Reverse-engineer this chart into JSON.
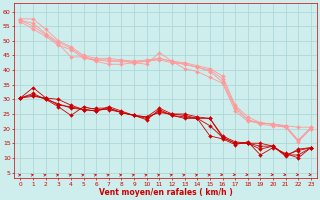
{
  "background_color": "#ceeeed",
  "grid_color": "#aad4d4",
  "line_color_dark": "#cc0000",
  "line_color_light": "#ff9999",
  "xlabel": "Vent moyen/en rafales ( km/h )",
  "xlabel_color": "#cc0000",
  "tick_color": "#cc0000",
  "x_ticks": [
    0,
    1,
    2,
    3,
    4,
    5,
    6,
    7,
    8,
    9,
    10,
    11,
    12,
    13,
    14,
    15,
    16,
    17,
    18,
    19,
    20,
    21,
    22,
    23
  ],
  "y_ticks": [
    5,
    10,
    15,
    20,
    25,
    30,
    35,
    40,
    45,
    50,
    55,
    60
  ],
  "xlim": [
    -0.5,
    23.5
  ],
  "ylim": [
    3,
    63
  ],
  "series_light": [
    [
      57.0,
      55.0,
      52.0,
      49.0,
      44.5,
      44.5,
      43.0,
      42.0,
      42.0,
      42.5,
      42.0,
      46.0,
      43.0,
      40.5,
      39.5,
      37.5,
      35.5,
      26.0,
      22.5,
      22.0,
      21.5,
      21.0,
      20.5,
      20.5
    ],
    [
      57.5,
      57.5,
      54.0,
      50.0,
      48.0,
      45.0,
      44.0,
      44.0,
      43.5,
      43.0,
      43.5,
      44.0,
      43.0,
      42.5,
      41.5,
      40.5,
      38.0,
      28.0,
      24.0,
      22.0,
      21.5,
      21.0,
      16.0,
      20.5
    ],
    [
      56.5,
      54.0,
      51.5,
      48.5,
      47.0,
      44.0,
      43.5,
      43.0,
      43.0,
      42.5,
      43.0,
      43.5,
      42.5,
      42.0,
      41.0,
      39.5,
      36.0,
      27.0,
      23.0,
      21.5,
      21.0,
      20.5,
      15.5,
      20.0
    ],
    [
      57.0,
      56.0,
      52.5,
      49.5,
      47.5,
      44.5,
      43.5,
      43.5,
      43.0,
      43.0,
      43.0,
      44.0,
      43.0,
      42.0,
      41.0,
      40.0,
      37.0,
      27.5,
      23.0,
      22.0,
      21.5,
      20.5,
      16.0,
      20.0
    ]
  ],
  "series_dark": [
    [
      30.5,
      31.0,
      30.5,
      28.0,
      27.5,
      26.5,
      27.0,
      27.0,
      25.5,
      24.5,
      24.0,
      27.0,
      25.0,
      25.0,
      24.0,
      23.5,
      17.5,
      15.5,
      15.0,
      15.0,
      14.0,
      10.5,
      13.0,
      13.5
    ],
    [
      30.5,
      34.0,
      30.5,
      30.0,
      28.0,
      26.5,
      26.0,
      27.5,
      26.0,
      24.5,
      23.0,
      26.5,
      24.5,
      23.5,
      23.5,
      17.5,
      16.5,
      14.5,
      15.5,
      11.0,
      13.5,
      11.5,
      10.0,
      13.5
    ],
    [
      30.5,
      31.5,
      30.0,
      27.5,
      24.5,
      27.5,
      26.5,
      26.5,
      25.5,
      24.5,
      24.0,
      25.5,
      25.0,
      24.5,
      23.5,
      23.5,
      17.0,
      15.0,
      15.0,
      14.0,
      14.0,
      11.0,
      12.5,
      13.5
    ],
    [
      30.5,
      32.0,
      30.0,
      28.5,
      27.0,
      26.5,
      26.0,
      27.0,
      25.5,
      24.5,
      23.5,
      26.0,
      24.5,
      24.0,
      23.5,
      21.0,
      17.0,
      15.0,
      15.0,
      13.0,
      14.0,
      11.0,
      11.0,
      13.5
    ]
  ],
  "marker_size": 2.0,
  "linewidth": 0.6
}
